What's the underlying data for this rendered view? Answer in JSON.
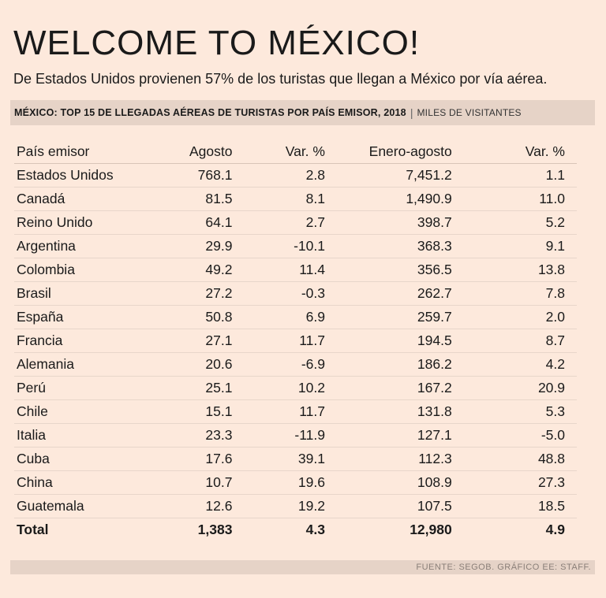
{
  "title": "WELCOME TO MÉXICO!",
  "subtitle": "De Estados Unidos provienen 57% de los turistas que llegan a México por vía aérea.",
  "bar": {
    "title": "MÉXICO: TOP 15 DE LLEGADAS AÉREAS DE TURISTAS POR PAÍS EMISOR, 2018",
    "separator": "|",
    "unit": "MILES DE VISITANTES"
  },
  "footer": "FUENTE: SEGOB. GRÁFICO EE: STAFF.",
  "chart_data": {
    "type": "table",
    "title": "MÉXICO: TOP 15 DE LLEGADAS AÉREAS DE TURISTAS POR PAÍS EMISOR, 2018",
    "unit": "MILES DE VISITANTES",
    "columns": [
      "País emisor",
      "Agosto",
      "Var. %",
      "Enero-agosto",
      "Var. %"
    ],
    "rows": [
      [
        "Estados Unidos",
        "768.1",
        "2.8",
        "7,451.2",
        "1.1"
      ],
      [
        "Canadá",
        "81.5",
        "8.1",
        "1,490.9",
        "11.0"
      ],
      [
        "Reino Unido",
        "64.1",
        "2.7",
        "398.7",
        "5.2"
      ],
      [
        "Argentina",
        "29.9",
        "-10.1",
        "368.3",
        "9.1"
      ],
      [
        "Colombia",
        "49.2",
        "11.4",
        "356.5",
        "13.8"
      ],
      [
        "Brasil",
        "27.2",
        "-0.3",
        "262.7",
        "7.8"
      ],
      [
        "España",
        "50.8",
        "6.9",
        "259.7",
        "2.0"
      ],
      [
        "Francia",
        "27.1",
        "11.7",
        "194.5",
        "8.7"
      ],
      [
        "Alemania",
        "20.6",
        "-6.9",
        "186.2",
        "4.2"
      ],
      [
        "Perú",
        "25.1",
        "10.2",
        "167.2",
        "20.9"
      ],
      [
        "Chile",
        "15.1",
        "11.7",
        "131.8",
        "5.3"
      ],
      [
        "Italia",
        "23.3",
        "-11.9",
        "127.1",
        "-5.0"
      ],
      [
        "Cuba",
        "17.6",
        "39.1",
        "112.3",
        "48.8"
      ],
      [
        "China",
        "10.7",
        "19.6",
        "108.9",
        "27.3"
      ],
      [
        "Guatemala",
        "12.6",
        "19.2",
        "107.5",
        "18.5"
      ]
    ],
    "total": [
      "Total",
      "1,383",
      "4.3",
      "12,980",
      "4.9"
    ]
  }
}
